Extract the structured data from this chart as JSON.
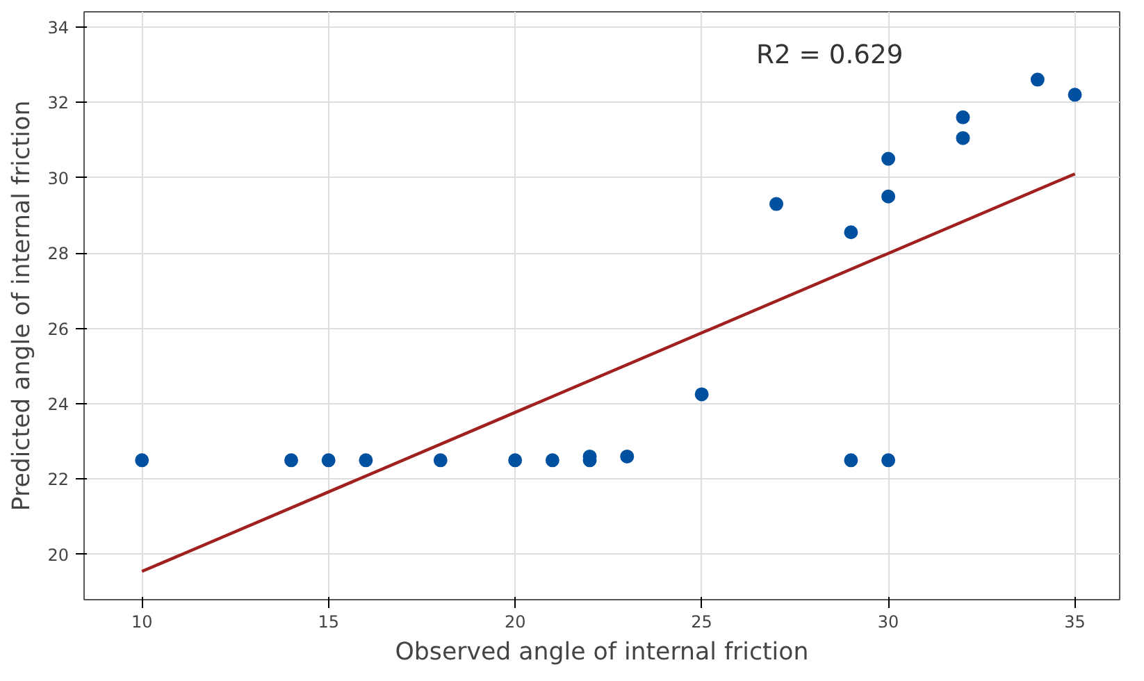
{
  "chart_data": {
    "type": "scatter",
    "xlabel": "Observed angle of internal friction",
    "ylabel": "Predicted angle of internal friction",
    "xlim": [
      8.45,
      36.2
    ],
    "ylim": [
      18.8,
      34.4
    ],
    "xticks": [
      10,
      15,
      20,
      25,
      30,
      35
    ],
    "yticks": [
      20,
      22,
      24,
      26,
      28,
      30,
      32,
      34
    ],
    "grid": true,
    "marker": "circle",
    "annotations": [
      "R2 = 0.629"
    ],
    "series": [
      {
        "color": "#0050a0",
        "x": [
          10,
          14,
          15,
          16,
          18,
          20,
          21,
          22,
          22,
          23,
          25,
          27,
          29,
          29,
          30,
          30,
          30,
          32,
          32,
          34,
          35
        ],
        "values": [
          22.5,
          22.5,
          22.5,
          22.5,
          22.5,
          22.5,
          22.5,
          22.6,
          22.5,
          22.6,
          24.25,
          29.3,
          28.55,
          22.5,
          30.5,
          29.5,
          22.5,
          31.6,
          31.05,
          32.6,
          32.2
        ]
      },
      {
        "type": "line",
        "marker": "none",
        "color": "#a02020",
        "x": [
          10,
          35
        ],
        "values": [
          19.55,
          30.1
        ]
      }
    ]
  }
}
